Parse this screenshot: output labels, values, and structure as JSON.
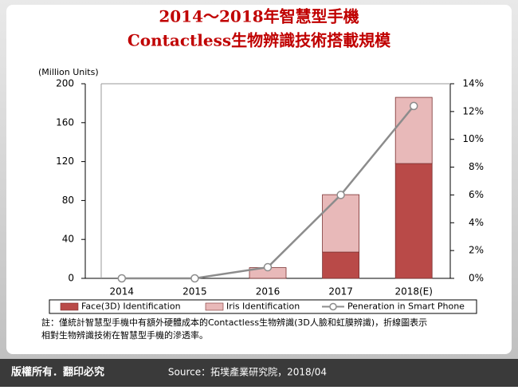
{
  "chart_data": {
    "type": "bar-line",
    "title": [
      "2014～2018年智慧型手機",
      "Contactless生物辨識技術搭載規模"
    ],
    "y_axis_label": "(Million Units)",
    "categories": [
      "2014",
      "2015",
      "2016",
      "2017",
      "2018(E)"
    ],
    "series": [
      {
        "name": "Face(3D) Identification",
        "color": "#b94a48",
        "type": "bar",
        "values": [
          0,
          0,
          0,
          27,
          118
        ]
      },
      {
        "name": "Iris Identification",
        "color": "#e8b9b9",
        "type": "bar",
        "values": [
          0,
          0,
          11,
          59,
          68
        ]
      },
      {
        "name": "Peneration in Smart Phone",
        "color": "#8c8c8c",
        "type": "line",
        "axis": "y2",
        "values": [
          0,
          0,
          0.8,
          6,
          12.4
        ]
      }
    ],
    "ylim": [
      0,
      200
    ],
    "yticks": [
      0,
      40,
      80,
      120,
      160,
      200
    ],
    "y2lim": [
      0,
      14
    ],
    "y2ticks": [
      {
        "value": 0,
        "label": "0%"
      },
      {
        "value": 2,
        "label": "2%"
      },
      {
        "value": 4,
        "label": "4%"
      },
      {
        "value": 6,
        "label": "6%"
      },
      {
        "value": 8,
        "label": "8%"
      },
      {
        "value": 10,
        "label": "10%"
      },
      {
        "value": 12,
        "label": "12%"
      },
      {
        "value": 14,
        "label": "14%"
      }
    ],
    "note": [
      "註：僅統計智慧型手機中有額外硬體成本的Contactless生物辨識(3D人臉和虹膜辨識)，折線圖表示",
      "相對生物辨識技術在智慧型手機的滲透率。"
    ],
    "footer_left": "版權所有．翻印必究",
    "source": "Source：拓墣產業研究院，2018/04"
  }
}
